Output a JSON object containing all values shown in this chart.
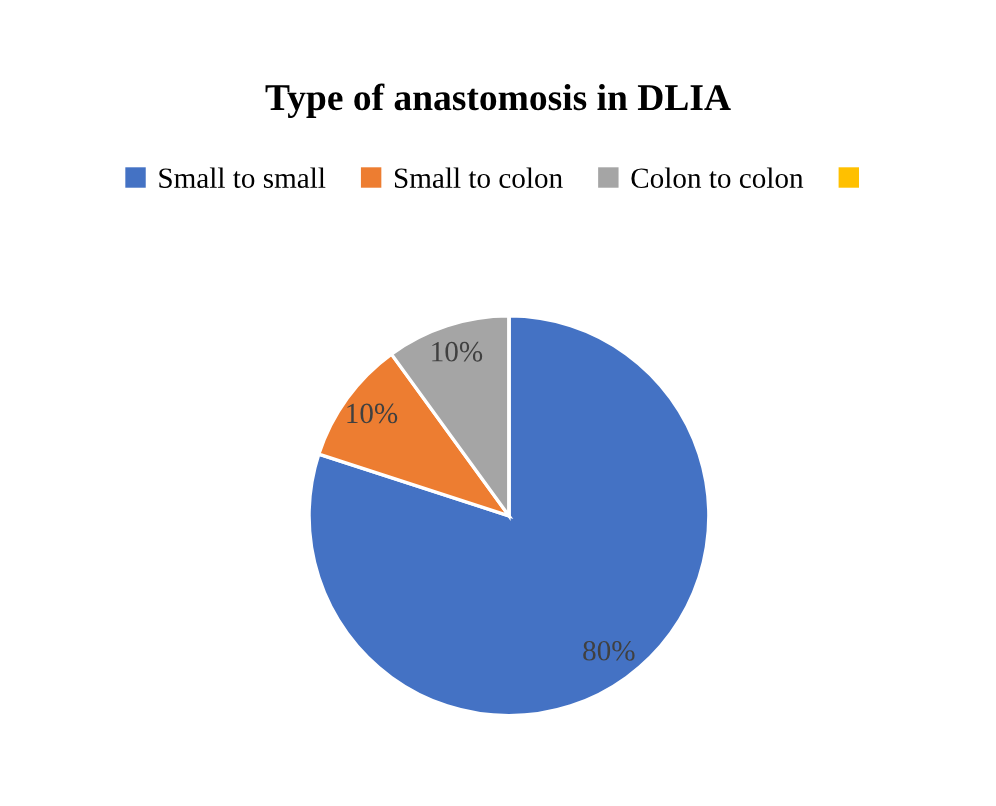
{
  "chart_data": {
    "type": "pie",
    "title": "Type of anastomosis in DLIA",
    "categories": [
      "Small to small",
      "Small to colon",
      "Colon to colon",
      null
    ],
    "values": [
      80,
      10,
      10,
      0
    ],
    "colors": [
      "#4472c4",
      "#ed7d31",
      "#a5a5a5",
      "#ffc000"
    ],
    "value_labels": [
      "80%",
      "10%",
      "10%",
      null
    ],
    "legend": "top"
  }
}
